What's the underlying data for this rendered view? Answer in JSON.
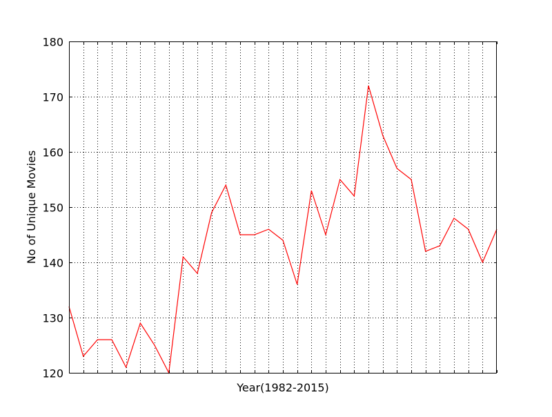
{
  "chart_data": {
    "type": "line",
    "title": "",
    "xlabel": "Year(1982-2015)",
    "ylabel": "No of Unique Movies",
    "ylim": [
      120,
      180
    ],
    "yticks": [
      120,
      130,
      140,
      150,
      160,
      170,
      180
    ],
    "xlim": [
      1982,
      2012
    ],
    "x_tick_labels_shown": false,
    "grid": true,
    "legend": "none",
    "series": [
      {
        "color": "#ff0000",
        "x": [
          1982,
          1983,
          1984,
          1985,
          1986,
          1987,
          1988,
          1989,
          1990,
          1991,
          1992,
          1993,
          1994,
          1995,
          1996,
          1997,
          1998,
          1999,
          2000,
          2001,
          2002,
          2003,
          2004,
          2005,
          2006,
          2007,
          2008,
          2009,
          2010,
          2011,
          2012
        ],
        "values": [
          132,
          123,
          126,
          126,
          121,
          129,
          125,
          120,
          141,
          138,
          149,
          154,
          145,
          145,
          146,
          144,
          136,
          153,
          145,
          155,
          152,
          172,
          163,
          157,
          155,
          142,
          143,
          148,
          146,
          140,
          146
        ]
      }
    ]
  }
}
